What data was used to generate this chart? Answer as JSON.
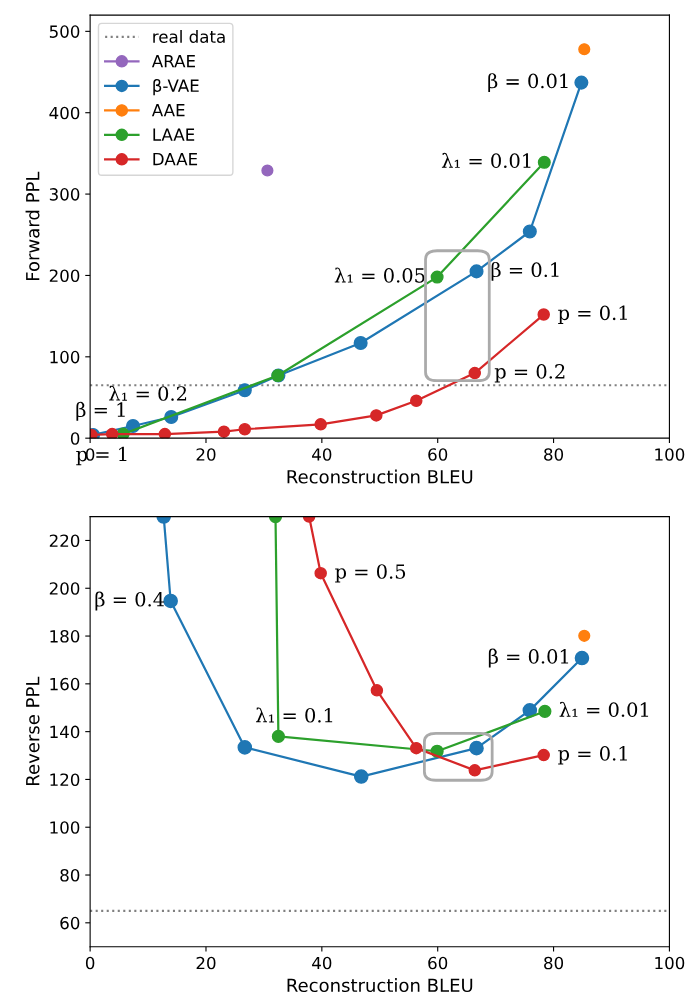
{
  "chart_data": [
    {
      "type": "line",
      "xlabel": "Reconstruction BLEU",
      "ylabel": "Forward PPL",
      "xlim": [
        0,
        100
      ],
      "xticks": [
        0,
        20,
        40,
        60,
        80,
        100
      ],
      "ylim": [
        0,
        520
      ],
      "yticks": [
        0,
        100,
        200,
        300,
        400,
        500
      ],
      "marker": "circle",
      "legend": "top left",
      "grid": false,
      "ref_lines": [
        {
          "axis": "y",
          "value": 65,
          "label": "real data",
          "color": "#808080",
          "line_style": "dotted"
        }
      ],
      "series": [
        {
          "name": "ARAE",
          "type": "scatter",
          "color": "#9467bd",
          "x": [
            30.6
          ],
          "values": [
            329
          ]
        },
        {
          "name": "β-VAE",
          "color": "#1f77b4",
          "x": [
            0.5,
            7.4,
            14,
            26.7,
            32.5,
            46.7,
            66.7,
            75.9,
            84.8
          ],
          "values": [
            4,
            15,
            26,
            59,
            77,
            117,
            205,
            254,
            437
          ]
        },
        {
          "name": "AAE",
          "type": "scatter",
          "color": "#ff7f0e",
          "x": [
            85.3
          ],
          "values": [
            478
          ]
        },
        {
          "name": "LAAE",
          "color": "#2ca02c",
          "x": [
            5.7,
            32.4,
            59.9,
            78.4
          ],
          "values": [
            5,
            77,
            198,
            339
          ]
        },
        {
          "name": "DAAE",
          "color": "#d62728",
          "x": [
            0.2,
            3.8,
            12.9,
            23.1,
            26.7,
            39.8,
            49.4,
            56.3,
            66.4,
            78.3
          ],
          "values": [
            4,
            5,
            5,
            8,
            11,
            17,
            28,
            46,
            80,
            152
          ]
        }
      ],
      "annotations": [
        {
          "text": "β = 0.01",
          "x": 84.8,
          "y": 437
        },
        {
          "text": "λ₁ = 0.01",
          "x": 78.4,
          "y": 339
        },
        {
          "text": "λ₁ = 0.05",
          "x": 59.9,
          "y": 198
        },
        {
          "text": "β = 0.1",
          "x": 66.7,
          "y": 205
        },
        {
          "text": "p = 0.1",
          "x": 78.3,
          "y": 152
        },
        {
          "text": "p = 0.2",
          "x": 66.4,
          "y": 80
        },
        {
          "text": "λ₁ = 0.2",
          "x": 5.7,
          "y": 5
        },
        {
          "text": "β = 1",
          "x": 0.5,
          "y": 4
        },
        {
          "text": "p = 1",
          "x": 0.2,
          "y": 4
        }
      ]
    },
    {
      "type": "line",
      "xlabel": "Reconstruction BLEU",
      "ylabel": "Reverse PPL",
      "xlim": [
        0,
        100
      ],
      "xticks": [
        0,
        20,
        40,
        60,
        80,
        100
      ],
      "ylim": [
        50,
        230
      ],
      "yticks": [
        60,
        80,
        100,
        120,
        140,
        160,
        180,
        200,
        220
      ],
      "marker": "circle",
      "legend": false,
      "grid": false,
      "ref_lines": [
        {
          "axis": "y",
          "value": 65,
          "color": "#808080",
          "line_style": "dotted"
        }
      ],
      "series": [
        {
          "color": "#1f77b4",
          "x": [
            12.7,
            13.9,
            26.7,
            46.8,
            66.7,
            75.9,
            84.9
          ],
          "values": [
            230,
            194.7,
            133.4,
            121.2,
            133.1,
            148.9,
            170.8
          ]
        },
        {
          "type": "scatter",
          "color": "#ff7f0e",
          "x": [
            85.3
          ],
          "values": [
            180.1
          ]
        },
        {
          "color": "#2ca02c",
          "x": [
            32.0,
            32.5,
            59.9,
            78.5
          ],
          "values": [
            230,
            138,
            131.8,
            148.5
          ]
        },
        {
          "color": "#d62728",
          "x": [
            37.8,
            39.8,
            49.5,
            56.3,
            66.4,
            78.3
          ],
          "values": [
            230,
            206.3,
            157.3,
            133.1,
            123.8,
            130.2
          ]
        }
      ],
      "annotations": [
        {
          "text": "p = 0.5",
          "x": 39.8,
          "y": 206.3
        },
        {
          "text": "β = 0.4",
          "x": 13.9,
          "y": 194.7
        },
        {
          "text": "β = 0.01",
          "x": 84.9,
          "y": 170.8
        },
        {
          "text": "λ₁ = 0.01",
          "x": 78.5,
          "y": 148.5
        },
        {
          "text": "λ₁ = 0.1",
          "x": 32.5,
          "y": 138
        },
        {
          "text": "p = 0.1",
          "x": 78.3,
          "y": 130.2
        }
      ]
    }
  ]
}
